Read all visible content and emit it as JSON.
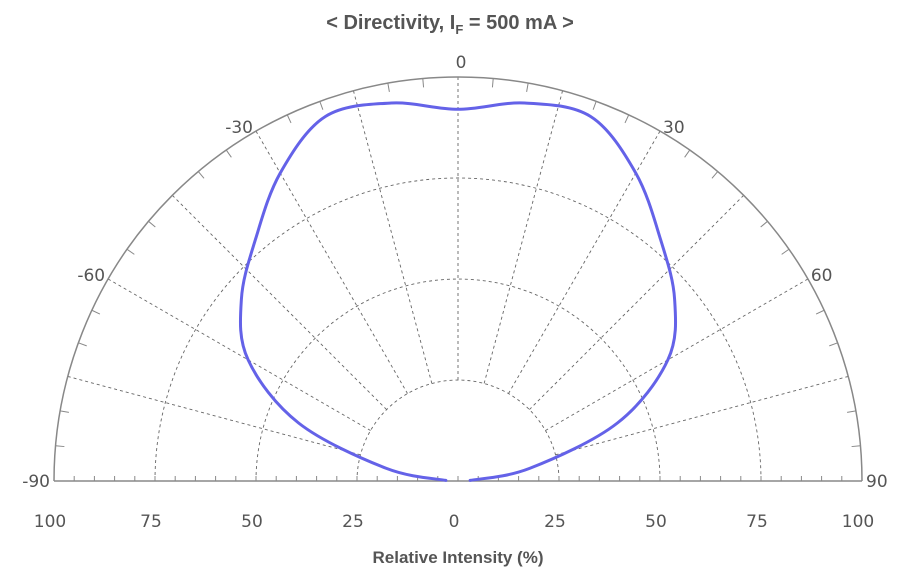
{
  "chart_data": {
    "type": "polar-line",
    "title_prefix": "< Directivity, I",
    "title_subscript": "F",
    "title_suffix": " = 500 mA >",
    "xlabel": "Relative Intensity (%)",
    "angle_range": [
      -90,
      90
    ],
    "angle_labels": [
      "-90",
      "-60",
      "-30",
      "0",
      "30",
      "60",
      "90"
    ],
    "radial_range": [
      0,
      100
    ],
    "radial_tick_labels": [
      "100",
      "75",
      "50",
      "25",
      "0",
      "25",
      "50",
      "75",
      "100"
    ],
    "grid": true,
    "series": [
      {
        "color": "#6462e8",
        "angle_deg": [
          -87,
          -80,
          -70,
          -60,
          -50,
          -40,
          -30,
          -20,
          -10,
          0,
          10,
          20,
          30,
          40,
          50,
          60,
          70,
          80,
          87
        ],
        "relative_intensity_pct": [
          3,
          18,
          42,
          60,
          70,
          78,
          88,
          96,
          95,
          92,
          95,
          96,
          88,
          78,
          70,
          60,
          42,
          18,
          3
        ]
      }
    ]
  }
}
